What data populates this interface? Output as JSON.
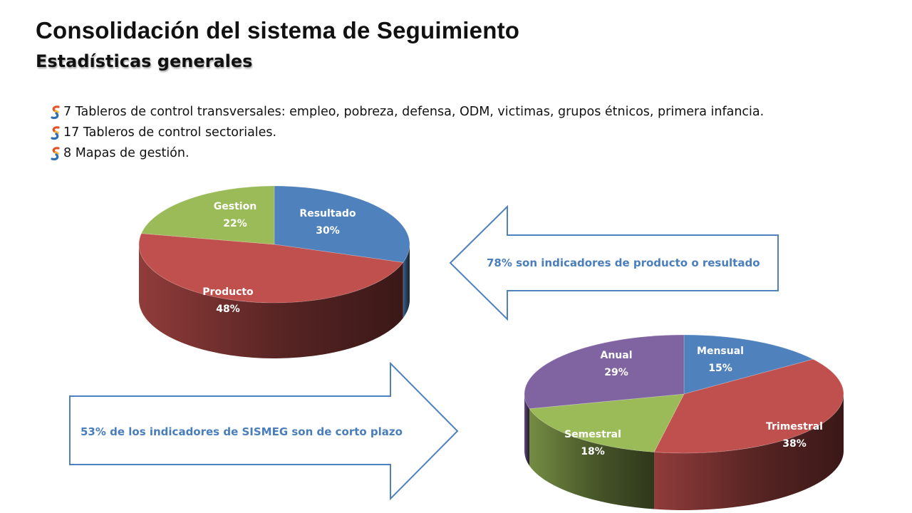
{
  "header": {
    "title": "Consolidación del sistema de Seguimiento",
    "subtitle": "Estadísticas generales"
  },
  "bullets": [
    {
      "text": " 7 Tableros de control transversales: empleo, pobreza, defensa, ODM, victimas, grupos étnicos, primera infancia.",
      "icon": "sinergia-logo-icon"
    },
    {
      "text": " 17 Tableros de control sectoriales.",
      "icon": "sinergia-logo-icon"
    },
    {
      "text": "  8 Mapas de gestión.",
      "icon": "sinergia-logo-icon"
    }
  ],
  "callouts": {
    "left_arrow_text": "78% son indicadores de producto o resultado",
    "right_arrow_text": "53% de los indicadores de SISMEG son de corto plazo",
    "arrow_color": "#4f81bd"
  },
  "chart_data": [
    {
      "type": "pie",
      "style": "3d",
      "slices": [
        {
          "label": "Resultado",
          "value": 30,
          "display": "30%",
          "color": "#4f81bd"
        },
        {
          "label": "Producto",
          "value": 48,
          "display": "48%",
          "color": "#c0504d"
        },
        {
          "label": "Gestion",
          "value": 22,
          "display": "22%",
          "color": "#9bbb59"
        }
      ]
    },
    {
      "type": "pie",
      "style": "3d",
      "slices": [
        {
          "label": "Mensual",
          "value": 15,
          "display": "15%",
          "color": "#4f81bd"
        },
        {
          "label": "Trimestral",
          "value": 38,
          "display": "38%",
          "color": "#c0504d"
        },
        {
          "label": "Semestral",
          "value": 18,
          "display": "18%",
          "color": "#9bbb59"
        },
        {
          "label": "Anual",
          "value": 29,
          "display": "29%",
          "color": "#8064a2"
        }
      ]
    }
  ]
}
